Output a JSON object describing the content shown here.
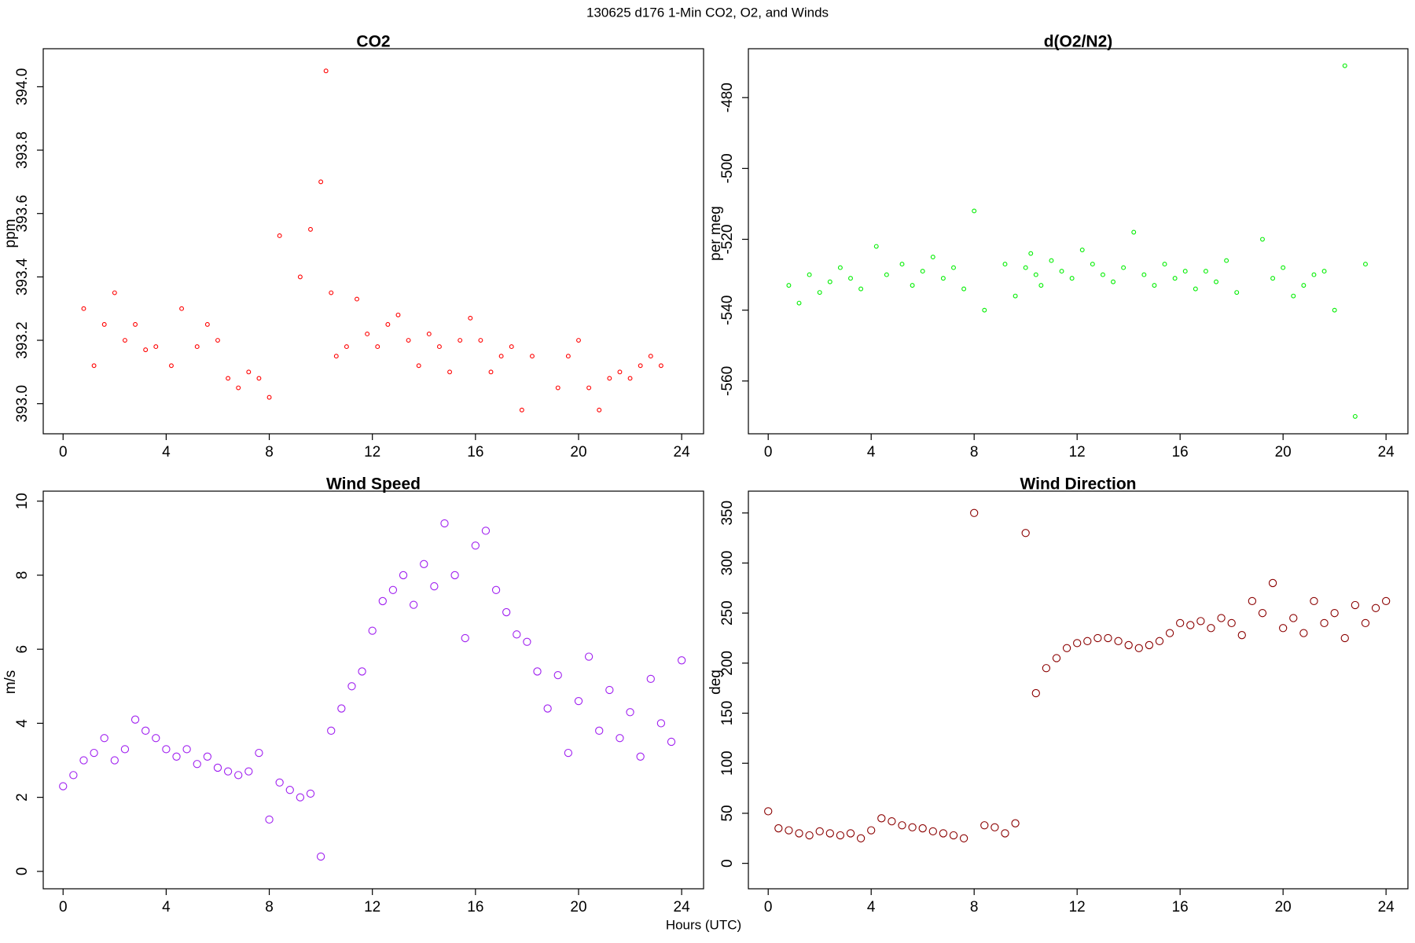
{
  "title": "130625   d176   1-Min CO2, O2, and Winds",
  "xlabel": "Hours (UTC)",
  "chart_data": [
    {
      "type": "scatter",
      "title": "CO2",
      "ylabel": "ppm",
      "color": "#ff0000",
      "x": [
        0.8,
        1.2,
        1.6,
        2.0,
        2.4,
        2.8,
        3.2,
        3.6,
        4.2,
        4.6,
        5.2,
        5.6,
        6.0,
        6.4,
        6.8,
        7.2,
        7.6,
        8.0,
        8.4,
        9.2,
        9.6,
        10.0,
        10.2,
        10.4,
        10.6,
        11.0,
        11.4,
        11.8,
        12.2,
        12.6,
        13.0,
        13.4,
        13.8,
        14.2,
        14.6,
        15.0,
        15.4,
        15.8,
        16.2,
        16.6,
        17.0,
        17.4,
        17.8,
        18.2,
        19.2,
        19.6,
        20.0,
        20.4,
        20.8,
        21.2,
        21.6,
        22.0,
        22.4,
        22.8,
        23.2
      ],
      "values": [
        393.3,
        393.12,
        393.25,
        393.35,
        393.2,
        393.25,
        393.17,
        393.18,
        393.12,
        393.3,
        393.18,
        393.25,
        393.2,
        393.08,
        393.05,
        393.1,
        393.08,
        393.02,
        393.53,
        393.4,
        393.55,
        393.7,
        394.05,
        393.35,
        393.15,
        393.18,
        393.33,
        393.22,
        393.18,
        393.25,
        393.28,
        393.2,
        393.12,
        393.22,
        393.18,
        393.1,
        393.2,
        393.27,
        393.2,
        393.1,
        393.15,
        393.18,
        392.98,
        393.15,
        393.05,
        393.15,
        393.2,
        393.05,
        392.98,
        393.08,
        393.1,
        393.08,
        393.12,
        393.15,
        393.12
      ],
      "xlim": [
        -0.77,
        24.85
      ],
      "xticks": [
        0,
        4,
        8,
        12,
        16,
        20,
        24
      ],
      "ylim": [
        392.905,
        394.12
      ],
      "yticks": [
        {
          "value": 393,
          "label": "393.0"
        },
        393.2,
        393.4,
        393.6,
        393.8,
        {
          "value": 394,
          "label": "394.0"
        }
      ]
    },
    {
      "type": "scatter",
      "title": "d(O2/N2)",
      "ylabel": "per meg",
      "color": "#00ee00",
      "x": [
        0.8,
        1.2,
        1.6,
        2.0,
        2.4,
        2.8,
        3.2,
        3.6,
        4.2,
        4.6,
        5.2,
        5.6,
        6.0,
        6.4,
        6.8,
        7.2,
        7.6,
        8.0,
        8.4,
        9.2,
        9.6,
        10.0,
        10.2,
        10.4,
        10.6,
        11.0,
        11.4,
        11.8,
        12.2,
        12.6,
        13.0,
        13.4,
        13.8,
        14.2,
        14.6,
        15.0,
        15.4,
        15.8,
        16.2,
        16.6,
        17.0,
        17.4,
        17.8,
        18.2,
        19.2,
        19.6,
        20.0,
        20.4,
        20.8,
        21.2,
        21.6,
        22.0,
        22.4,
        22.8,
        23.2
      ],
      "values": [
        -533,
        -538,
        -530,
        -535,
        -532,
        -528,
        -531,
        -534,
        -522,
        -530,
        -527,
        -533,
        -529,
        -525,
        -531,
        -528,
        -534,
        -512,
        -540,
        -527,
        -536,
        -528,
        -524,
        -530,
        -533,
        -526,
        -529,
        -531,
        -523,
        -527,
        -530,
        -532,
        -528,
        -518,
        -530,
        -533,
        -527,
        -531,
        -529,
        -534,
        -529,
        -532,
        -526,
        -535,
        -520,
        -531,
        -528,
        -536,
        -533,
        -530,
        -529,
        -540,
        -471,
        -570,
        -527
      ],
      "xlim": [
        -0.77,
        24.85
      ],
      "xticks": [
        0,
        4,
        8,
        12,
        16,
        20,
        24
      ],
      "ylim": [
        -574.9,
        -466.2
      ],
      "yticks": [
        -560,
        -540,
        -520,
        -500,
        -480
      ]
    },
    {
      "type": "scatter",
      "title": "Wind Speed",
      "ylabel": "m/s",
      "color": "#a020f0",
      "x": [
        0,
        0.4,
        0.8,
        1.2,
        1.6,
        2.0,
        2.4,
        2.8,
        3.2,
        3.6,
        4.0,
        4.4,
        4.8,
        5.2,
        5.6,
        6.0,
        6.4,
        6.8,
        7.2,
        7.6,
        8.0,
        8.4,
        8.8,
        9.2,
        9.6,
        10.0,
        10.4,
        10.8,
        11.2,
        11.6,
        12.0,
        12.4,
        12.8,
        13.2,
        13.6,
        14.0,
        14.4,
        14.8,
        15.2,
        15.6,
        16.0,
        16.4,
        16.8,
        17.2,
        17.6,
        18.0,
        18.4,
        18.8,
        19.2,
        19.6,
        20.0,
        20.4,
        20.8,
        21.2,
        21.6,
        22.0,
        22.4,
        22.8,
        23.2,
        23.6,
        24.0
      ],
      "values": [
        2.3,
        2.6,
        3.0,
        3.2,
        3.6,
        3.0,
        3.3,
        4.1,
        3.8,
        3.6,
        3.3,
        3.1,
        3.3,
        2.9,
        3.1,
        2.8,
        2.7,
        2.6,
        2.7,
        3.2,
        1.4,
        2.4,
        2.2,
        2.0,
        2.1,
        0.4,
        3.8,
        4.4,
        5.0,
        5.4,
        6.5,
        7.3,
        7.6,
        8.0,
        7.2,
        8.3,
        7.7,
        9.4,
        8.0,
        6.3,
        8.8,
        9.2,
        7.6,
        7.0,
        6.4,
        6.2,
        5.4,
        4.4,
        5.3,
        3.2,
        4.6,
        5.8,
        3.8,
        4.9,
        3.6,
        4.3,
        3.1,
        5.2,
        4.0,
        3.5,
        5.7
      ],
      "xlim": [
        -0.77,
        24.85
      ],
      "xticks": [
        0,
        4,
        8,
        12,
        16,
        20,
        24
      ],
      "ylim": [
        -0.47,
        10.27
      ],
      "yticks": [
        0,
        2,
        4,
        6,
        8,
        10
      ]
    },
    {
      "type": "scatter",
      "title": "Wind Direction",
      "ylabel": "deg",
      "color": "#8b0000",
      "x": [
        0,
        0.4,
        0.8,
        1.2,
        1.6,
        2.0,
        2.4,
        2.8,
        3.2,
        3.6,
        4.0,
        4.4,
        4.8,
        5.2,
        5.6,
        6.0,
        6.4,
        6.8,
        7.2,
        7.6,
        8.0,
        8.4,
        8.8,
        9.2,
        9.6,
        10.0,
        10.4,
        10.8,
        11.2,
        11.6,
        12.0,
        12.4,
        12.8,
        13.2,
        13.6,
        14.0,
        14.4,
        14.8,
        15.2,
        15.6,
        16.0,
        16.4,
        16.8,
        17.2,
        17.6,
        18.0,
        18.4,
        18.8,
        19.2,
        19.6,
        20.0,
        20.4,
        20.8,
        21.2,
        21.6,
        22.0,
        22.4,
        22.8,
        23.2,
        23.6,
        24.0
      ],
      "values": [
        52,
        35,
        33,
        30,
        28,
        32,
        30,
        28,
        30,
        25,
        33,
        45,
        42,
        38,
        36,
        35,
        32,
        30,
        28,
        25,
        350,
        38,
        36,
        30,
        40,
        330,
        170,
        195,
        205,
        215,
        220,
        222,
        225,
        225,
        222,
        218,
        215,
        218,
        222,
        230,
        240,
        238,
        242,
        235,
        245,
        240,
        228,
        262,
        250,
        280,
        235,
        245,
        230,
        262,
        240,
        250,
        225,
        258,
        240,
        255,
        262
      ],
      "xlim": [
        -0.77,
        24.85
      ],
      "xticks": [
        0,
        4,
        8,
        12,
        16,
        20,
        24
      ],
      "ylim": [
        -25.4,
        371.8
      ],
      "yticks": [
        0,
        50,
        100,
        150,
        200,
        250,
        300,
        350
      ]
    }
  ]
}
